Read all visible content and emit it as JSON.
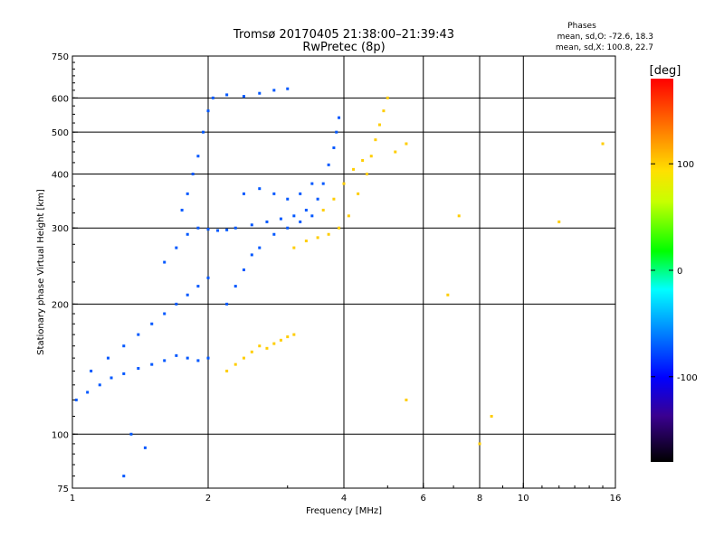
{
  "header": {
    "title": "Tromsø 20170405 21:38:00–21:39:43",
    "subtitle": "RwPretec (8p)"
  },
  "info": {
    "heading": "Phases",
    "line_o": "mean, sd,O: -72.6, 18.3",
    "line_x": "mean, sd,X: 100.8, 22.7"
  },
  "colorbar": {
    "unit_label": "[deg]",
    "ticks": [
      {
        "value": 100,
        "label": "100"
      },
      {
        "value": 0,
        "label": "0"
      },
      {
        "value": -100,
        "label": "-100"
      }
    ],
    "range": [
      -180,
      180
    ]
  },
  "chart_data": {
    "type": "scatter",
    "title": "Tromsø 20170405 21:38:00–21:39:43",
    "subtitle": "RwPretec (8p)",
    "xlabel": "Frequency [MHz]",
    "ylabel": "Stationary phase Virtual Height [km]",
    "xscale": "log",
    "yscale": "log",
    "xlim": [
      1,
      16
    ],
    "ylim": [
      75,
      750
    ],
    "xticks": [
      {
        "value": 1,
        "label": "1"
      },
      {
        "value": 2,
        "label": "2"
      },
      {
        "value": 4,
        "label": "4"
      },
      {
        "value": 6,
        "label": "6"
      },
      {
        "value": 8,
        "label": "8"
      },
      {
        "value": 10,
        "label": "10"
      },
      {
        "value": 16,
        "label": "16"
      }
    ],
    "yticks": [
      {
        "value": 75,
        "label": "75"
      },
      {
        "value": 100,
        "label": "100"
      },
      {
        "value": 200,
        "label": "200"
      },
      {
        "value": 300,
        "label": "300"
      },
      {
        "value": 400,
        "label": "400"
      },
      {
        "value": 500,
        "label": "500"
      },
      {
        "value": 600,
        "label": "600"
      },
      {
        "value": 750,
        "label": "750"
      }
    ],
    "major_grid_x": [
      2,
      4,
      6,
      8,
      10
    ],
    "major_grid_y": [
      100,
      200,
      300,
      400,
      500,
      600
    ],
    "grid": true,
    "colorscale": "rainbow phase in degrees",
    "series": [
      {
        "name": "O",
        "color_phase": -72.6,
        "points": [
          [
            1.02,
            120
          ],
          [
            1.08,
            125
          ],
          [
            1.15,
            130
          ],
          [
            1.22,
            135
          ],
          [
            1.3,
            138
          ],
          [
            1.4,
            142
          ],
          [
            1.5,
            145
          ],
          [
            1.6,
            148
          ],
          [
            1.7,
            152
          ],
          [
            1.8,
            150
          ],
          [
            1.9,
            148
          ],
          [
            2.0,
            150
          ],
          [
            1.1,
            140
          ],
          [
            1.2,
            150
          ],
          [
            1.3,
            160
          ],
          [
            1.4,
            170
          ],
          [
            1.5,
            180
          ],
          [
            1.6,
            190
          ],
          [
            1.7,
            200
          ],
          [
            1.8,
            210
          ],
          [
            1.9,
            220
          ],
          [
            2.0,
            230
          ],
          [
            1.6,
            250
          ],
          [
            1.7,
            270
          ],
          [
            1.8,
            290
          ],
          [
            1.9,
            300
          ],
          [
            2.0,
            298
          ],
          [
            2.1,
            296
          ],
          [
            2.2,
            297
          ],
          [
            2.3,
            300
          ],
          [
            2.5,
            305
          ],
          [
            2.7,
            310
          ],
          [
            2.9,
            315
          ],
          [
            3.1,
            320
          ],
          [
            3.3,
            330
          ],
          [
            3.5,
            350
          ],
          [
            3.6,
            380
          ],
          [
            3.7,
            420
          ],
          [
            3.8,
            460
          ],
          [
            3.85,
            500
          ],
          [
            3.9,
            540
          ],
          [
            1.75,
            330
          ],
          [
            1.8,
            360
          ],
          [
            1.85,
            400
          ],
          [
            1.9,
            440
          ],
          [
            1.95,
            500
          ],
          [
            2.0,
            560
          ],
          [
            2.05,
            600
          ],
          [
            2.2,
            610
          ],
          [
            2.4,
            605
          ],
          [
            2.6,
            615
          ],
          [
            2.8,
            625
          ],
          [
            3.0,
            630
          ],
          [
            2.2,
            200
          ],
          [
            2.3,
            220
          ],
          [
            2.4,
            240
          ],
          [
            2.5,
            260
          ],
          [
            2.6,
            270
          ],
          [
            2.8,
            290
          ],
          [
            3.0,
            300
          ],
          [
            3.2,
            310
          ],
          [
            3.4,
            320
          ],
          [
            2.4,
            360
          ],
          [
            2.6,
            370
          ],
          [
            2.8,
            360
          ],
          [
            3.0,
            350
          ],
          [
            3.2,
            360
          ],
          [
            3.4,
            380
          ],
          [
            1.35,
            100
          ],
          [
            1.45,
            93
          ],
          [
            1.3,
            80
          ]
        ]
      },
      {
        "name": "X",
        "color_phase": 100.8,
        "points": [
          [
            2.2,
            140
          ],
          [
            2.3,
            145
          ],
          [
            2.4,
            150
          ],
          [
            2.5,
            155
          ],
          [
            2.6,
            160
          ],
          [
            2.7,
            158
          ],
          [
            2.8,
            162
          ],
          [
            2.9,
            165
          ],
          [
            3.0,
            168
          ],
          [
            3.1,
            170
          ],
          [
            3.1,
            270
          ],
          [
            3.3,
            280
          ],
          [
            3.5,
            285
          ],
          [
            3.7,
            290
          ],
          [
            3.9,
            300
          ],
          [
            4.1,
            320
          ],
          [
            4.3,
            360
          ],
          [
            4.5,
            400
          ],
          [
            4.6,
            440
          ],
          [
            4.7,
            480
          ],
          [
            4.8,
            520
          ],
          [
            4.9,
            560
          ],
          [
            5.0,
            600
          ],
          [
            3.6,
            330
          ],
          [
            3.8,
            350
          ],
          [
            4.0,
            380
          ],
          [
            4.2,
            410
          ],
          [
            4.4,
            430
          ],
          [
            5.2,
            450
          ],
          [
            5.5,
            470
          ],
          [
            6.8,
            210
          ],
          [
            7.2,
            320
          ],
          [
            5.5,
            120
          ],
          [
            8.0,
            95
          ],
          [
            8.5,
            110
          ],
          [
            12.0,
            310
          ],
          [
            15.0,
            470
          ]
        ]
      }
    ]
  }
}
